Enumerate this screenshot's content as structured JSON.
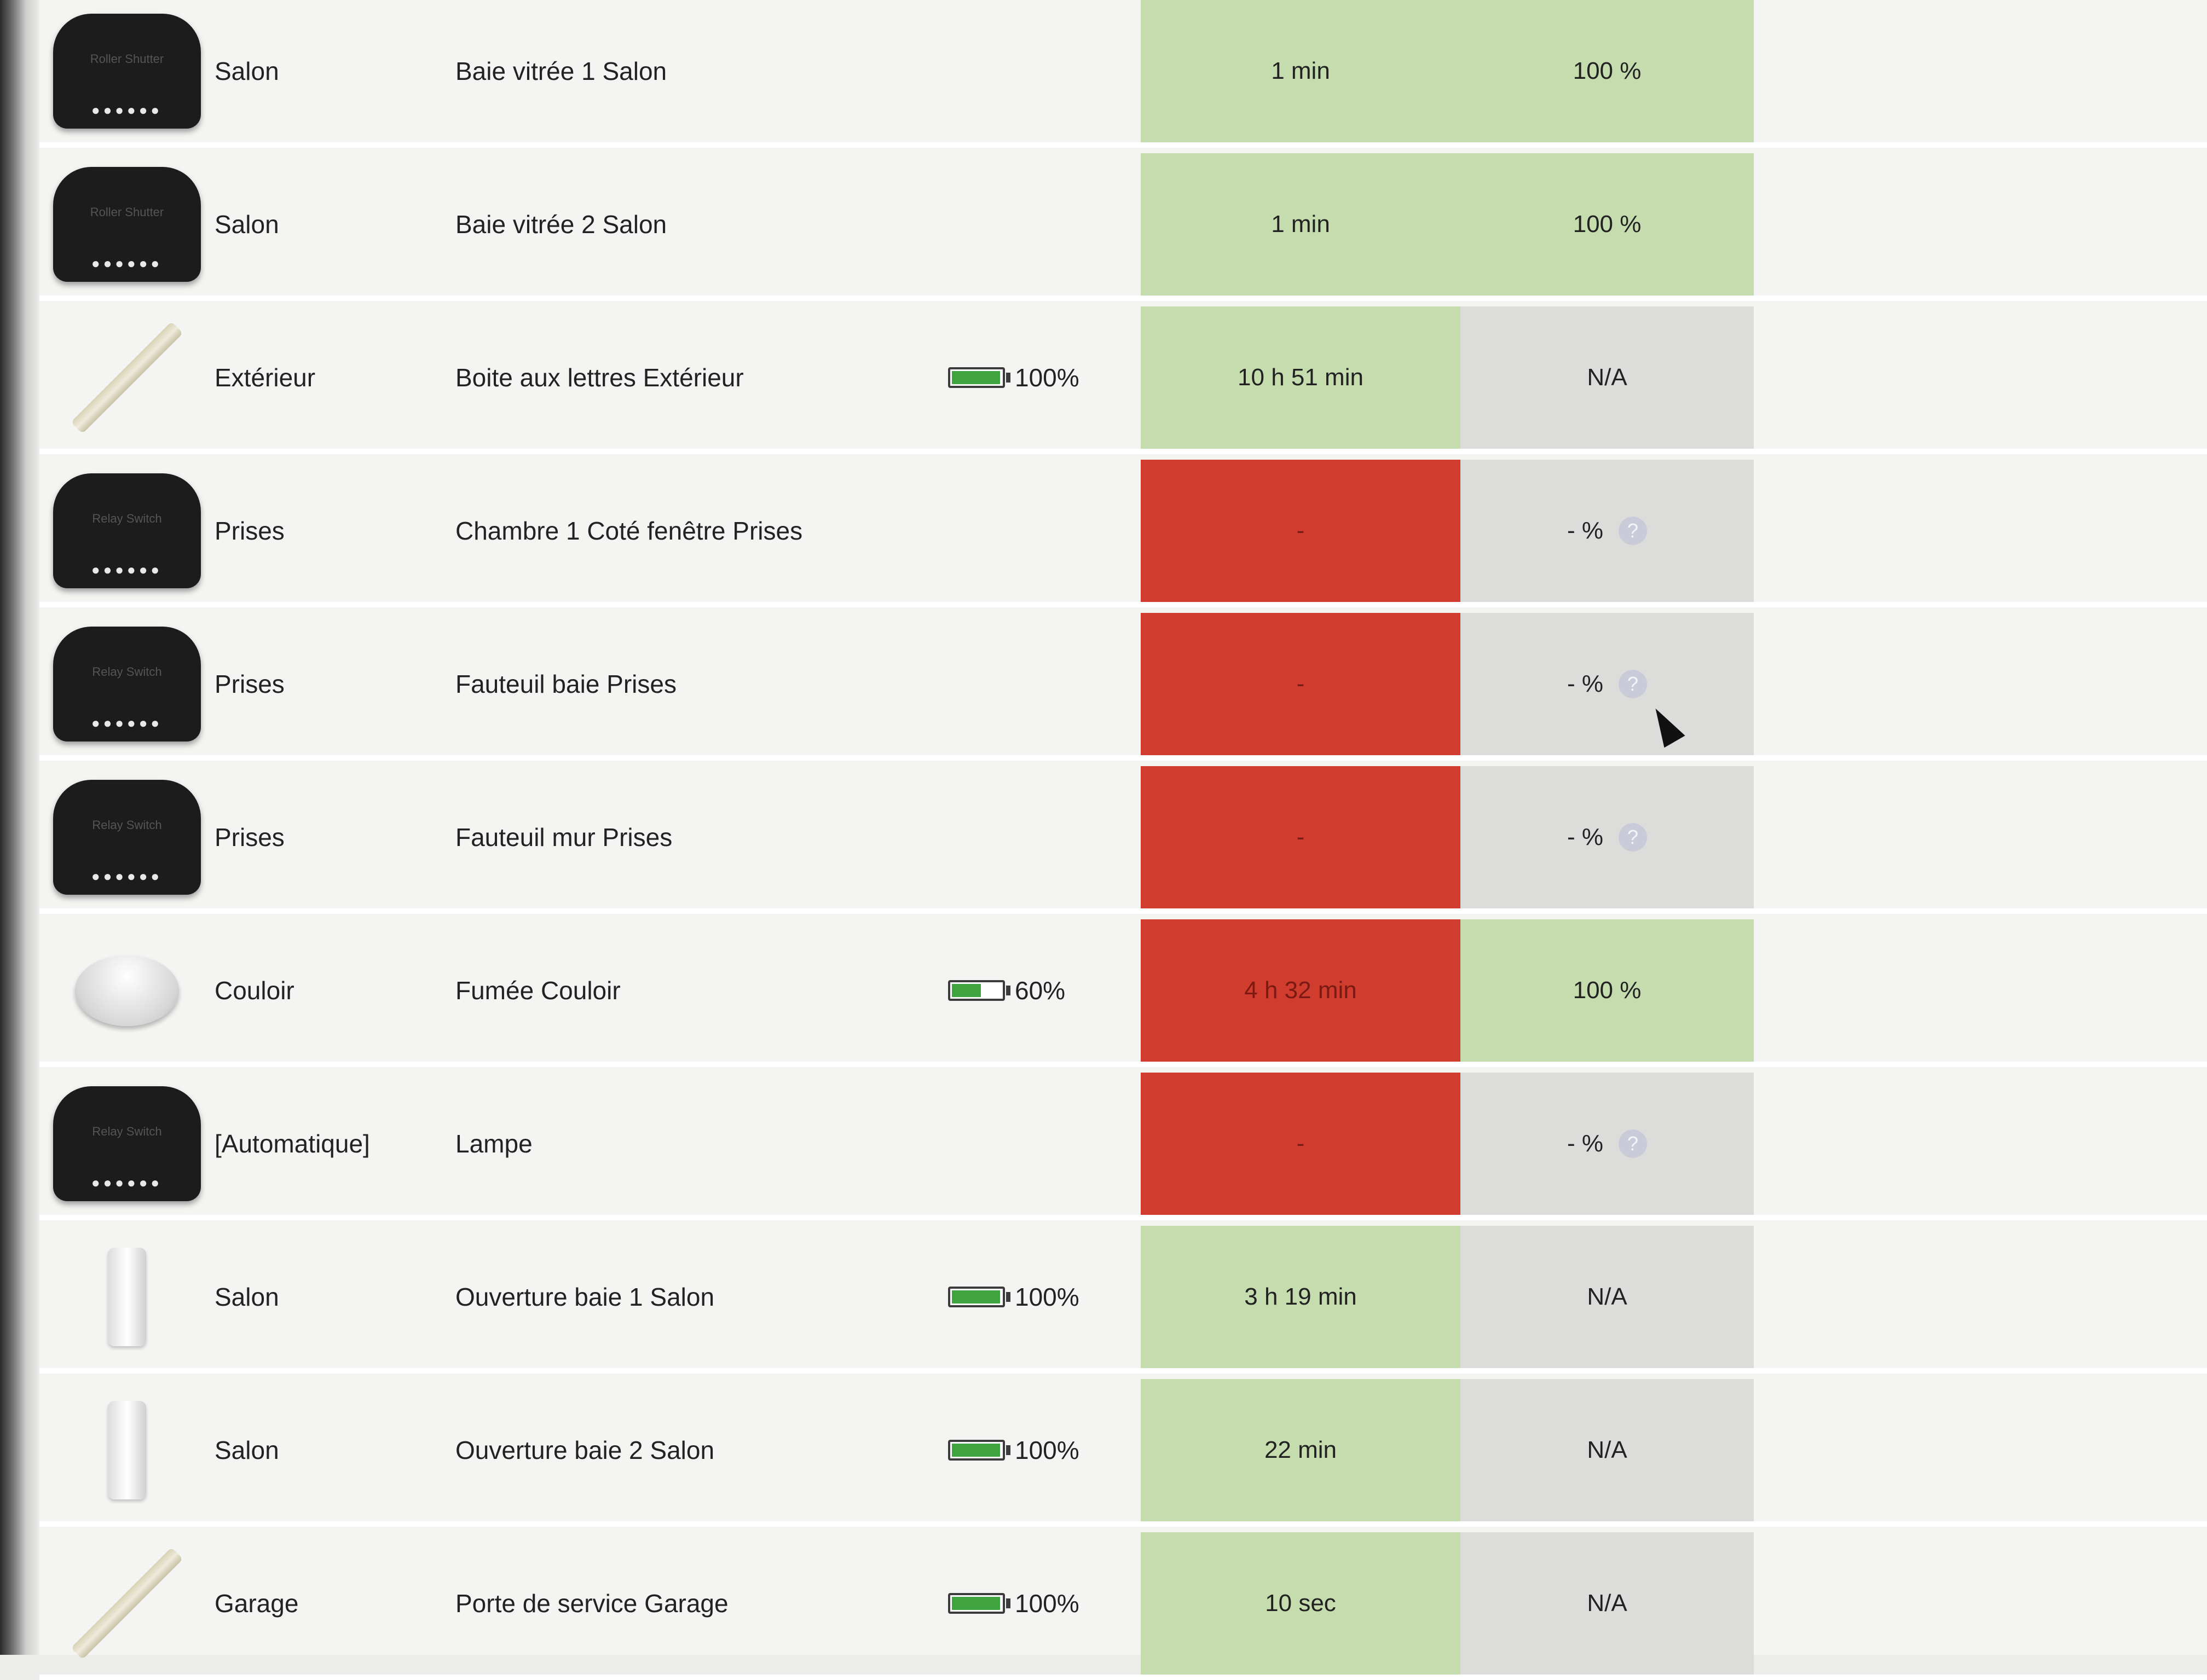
{
  "rows": [
    {
      "device_type": "roller-shutter",
      "device_brand": "Roller Shutter",
      "room": "Salon",
      "name": "Baie vitrée 1 Salon",
      "battery": null,
      "last_seen": "1 min",
      "last_seen_status": "green",
      "level": "100 %",
      "level_status": "green",
      "level_help": false
    },
    {
      "device_type": "roller-shutter",
      "device_brand": "Roller Shutter",
      "room": "Salon",
      "name": "Baie vitrée 2 Salon",
      "battery": null,
      "last_seen": "1 min",
      "last_seen_status": "green",
      "level": "100 %",
      "level_status": "green",
      "level_help": false
    },
    {
      "device_type": "door-sensor-stick",
      "device_brand": "",
      "room": "Extérieur",
      "name": "Boite aux lettres Extérieur",
      "battery": "100%",
      "battery_level": 1.0,
      "last_seen": "10 h 51 min",
      "last_seen_status": "green",
      "level": "N/A",
      "level_status": "gray",
      "level_help": false
    },
    {
      "device_type": "relay-switch",
      "device_brand": "Relay Switch",
      "room": "Prises",
      "name": "Chambre 1 Coté fenêtre Prises",
      "battery": null,
      "last_seen": "-",
      "last_seen_status": "red",
      "level": "- %",
      "level_status": "gray",
      "level_help": true
    },
    {
      "device_type": "relay-switch",
      "device_brand": "Relay Switch",
      "room": "Prises",
      "name": "Fauteuil baie Prises",
      "battery": null,
      "last_seen": "-",
      "last_seen_status": "red",
      "level": "- %",
      "level_status": "gray",
      "level_help": true
    },
    {
      "device_type": "relay-switch",
      "device_brand": "Relay Switch",
      "room": "Prises",
      "name": "Fauteuil mur Prises",
      "battery": null,
      "last_seen": "-",
      "last_seen_status": "red",
      "level": "- %",
      "level_status": "gray",
      "level_help": true
    },
    {
      "device_type": "smoke-detector",
      "device_brand": "",
      "room": "Couloir",
      "name": "Fumée Couloir",
      "battery": "60%",
      "battery_level": 0.6,
      "last_seen": "4 h 32 min",
      "last_seen_status": "red",
      "level": "100 %",
      "level_status": "green",
      "level_help": false
    },
    {
      "device_type": "relay-switch",
      "device_brand": "Relay Switch",
      "room": "[Automatique]",
      "name": "Lampe",
      "battery": null,
      "last_seen": "-",
      "last_seen_status": "red",
      "level": "- %",
      "level_status": "gray",
      "level_help": true
    },
    {
      "device_type": "opening-sensor",
      "device_brand": "",
      "room": "Salon",
      "name": "Ouverture baie 1 Salon",
      "battery": "100%",
      "battery_level": 1.0,
      "last_seen": "3 h 19 min",
      "last_seen_status": "green",
      "level": "N/A",
      "level_status": "gray",
      "level_help": false
    },
    {
      "device_type": "opening-sensor",
      "device_brand": "",
      "room": "Salon",
      "name": "Ouverture baie 2 Salon",
      "battery": "100%",
      "battery_level": 1.0,
      "last_seen": "22 min",
      "last_seen_status": "green",
      "level": "N/A",
      "level_status": "gray",
      "level_help": false
    },
    {
      "device_type": "door-sensor-stick",
      "device_brand": "",
      "room": "Garage",
      "name": "Porte de service Garage",
      "battery": "100%",
      "battery_level": 1.0,
      "last_seen": "10 sec",
      "last_seen_status": "green",
      "level": "N/A",
      "level_status": "gray",
      "level_help": false
    }
  ],
  "icons": {
    "help": "?",
    "module_pins": "●●●●●●"
  },
  "colors": {
    "green": "#c4dcae",
    "red": "#d03c2e",
    "gray": "#dcdcdb"
  }
}
